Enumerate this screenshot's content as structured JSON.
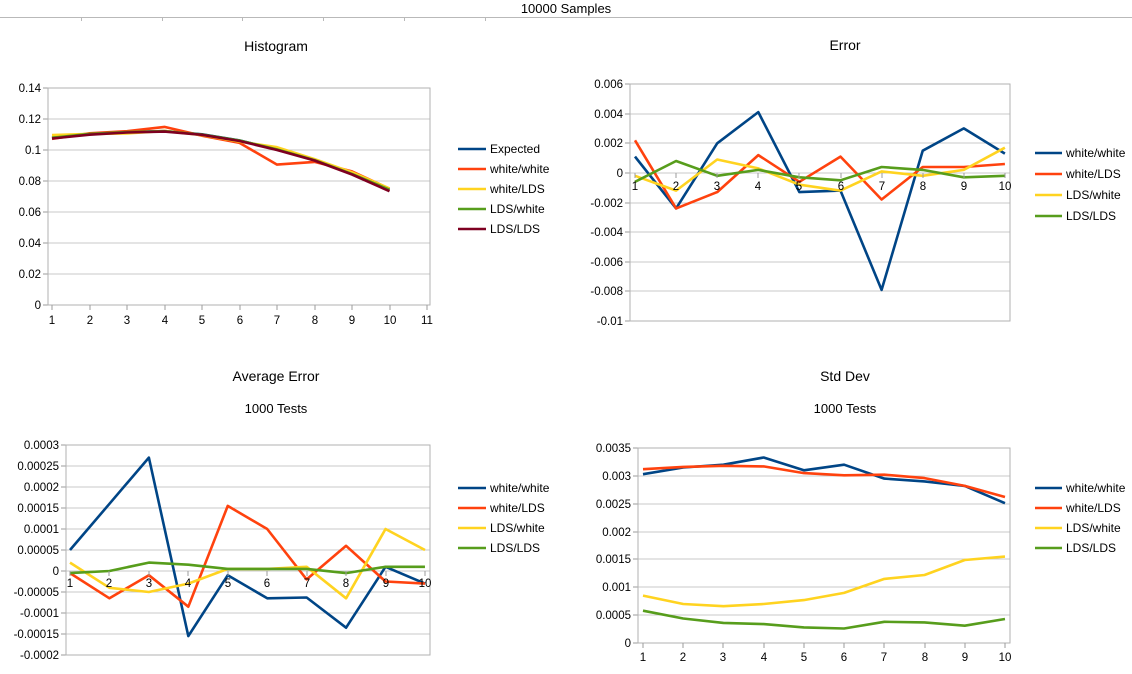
{
  "page_title": "10000 Samples",
  "palette": {
    "blue": "#004586",
    "red": "#FF420E",
    "yellow": "#FFD320",
    "green": "#579D1C",
    "maroon": "#7E0021"
  },
  "chart_data": [
    {
      "type": "line",
      "title": "Histogram",
      "subtitle": null,
      "x": [
        1,
        2,
        3,
        4,
        5,
        6,
        7,
        8,
        9,
        10
      ],
      "xticks": [
        1,
        2,
        3,
        4,
        5,
        6,
        7,
        8,
        9,
        10,
        11
      ],
      "ylim": [
        0,
        0.14
      ],
      "ystep": 0.02,
      "grid": true,
      "legend_position": "right",
      "legend": [
        "Expected",
        "white/white",
        "white/LDS",
        "LDS/white",
        "LDS/LDS"
      ],
      "series": [
        {
          "name": "Expected",
          "color": "blue",
          "values": [
            0.108,
            0.1102,
            0.1115,
            0.1122,
            0.1101,
            0.1062,
            0.1002,
            0.0936,
            0.0846,
            0.0741
          ]
        },
        {
          "name": "white/white",
          "color": "red",
          "values": [
            0.1072,
            0.1108,
            0.1121,
            0.1149,
            0.1092,
            0.1046,
            0.0906,
            0.0923,
            0.0862,
            0.075
          ]
        },
        {
          "name": "white/LDS",
          "color": "yellow",
          "values": [
            0.1096,
            0.1104,
            0.1107,
            0.1123,
            0.1096,
            0.1054,
            0.1018,
            0.0941,
            0.0856,
            0.0752
          ]
        },
        {
          "name": "LDS/white",
          "color": "green",
          "values": [
            0.1079,
            0.1104,
            0.1116,
            0.1121,
            0.11,
            0.1061,
            0.1004,
            0.0935,
            0.0845,
            0.0744
          ]
        },
        {
          "name": "LDS/LDS",
          "color": "maroon",
          "values": [
            0.1074,
            0.1099,
            0.1113,
            0.1119,
            0.1098,
            0.1058,
            0.1,
            0.0932,
            0.0842,
            0.0734
          ]
        }
      ]
    },
    {
      "type": "line",
      "title": "Error",
      "subtitle": null,
      "x": [
        1,
        2,
        3,
        4,
        5,
        6,
        7,
        8,
        9,
        10
      ],
      "xticks": [
        1,
        2,
        3,
        4,
        5,
        6,
        7,
        8,
        9,
        10
      ],
      "ylim": [
        -0.01,
        0.006
      ],
      "ystep": 0.002,
      "grid": true,
      "legend_position": "right",
      "legend": [
        "white/white",
        "white/LDS",
        "LDS/white",
        "LDS/LDS"
      ],
      "series": [
        {
          "name": "white/white",
          "color": "blue",
          "values": [
            0.0011,
            -0.0024,
            0.002,
            0.0041,
            -0.0013,
            -0.0012,
            -0.0079,
            0.0015,
            0.003,
            0.0013
          ]
        },
        {
          "name": "white/LDS",
          "color": "red",
          "values": [
            0.0022,
            -0.0024,
            -0.0013,
            0.0012,
            -0.0006,
            0.0011,
            -0.0018,
            0.0004,
            0.0004,
            0.0006
          ]
        },
        {
          "name": "LDS/white",
          "color": "yellow",
          "values": [
            -0.0002,
            -0.0012,
            0.0009,
            0.0003,
            -0.0008,
            -0.0012,
            0.0001,
            -0.0002,
            0.0002,
            0.0017
          ]
        },
        {
          "name": "LDS/LDS",
          "color": "green",
          "values": [
            -0.0006,
            0.0008,
            -0.0002,
            0.0002,
            -0.0003,
            -0.0005,
            0.0004,
            0.0002,
            -0.0003,
            -0.0002
          ]
        }
      ]
    },
    {
      "type": "line",
      "title": "Average Error",
      "subtitle": "1000 Tests",
      "x": [
        1,
        2,
        3,
        4,
        5,
        6,
        7,
        8,
        9,
        10
      ],
      "xticks": [
        1,
        2,
        3,
        4,
        5,
        6,
        7,
        8,
        9,
        10
      ],
      "ylim": [
        -0.0002,
        0.0003
      ],
      "ystep": 5e-05,
      "grid": true,
      "legend_position": "right",
      "legend": [
        "white/white",
        "white/LDS",
        "LDS/white",
        "LDS/LDS"
      ],
      "series": [
        {
          "name": "white/white",
          "color": "blue",
          "values": [
            5e-05,
            0.00016,
            0.00027,
            -0.000155,
            -1e-05,
            -6.5e-05,
            -6.3e-05,
            -0.000135,
            1e-05,
            -3e-05
          ]
        },
        {
          "name": "white/LDS",
          "color": "red",
          "values": [
            -5e-06,
            -6.5e-05,
            -1e-05,
            -8.5e-05,
            0.000155,
            0.0001,
            -2e-05,
            6e-05,
            -2.5e-05,
            -3e-05
          ]
        },
        {
          "name": "LDS/white",
          "color": "yellow",
          "values": [
            2e-05,
            -4e-05,
            -5e-05,
            -3e-05,
            5e-06,
            5e-06,
            1e-05,
            -6.5e-05,
            0.0001,
            5e-05
          ]
        },
        {
          "name": "LDS/LDS",
          "color": "green",
          "values": [
            -5e-06,
            0,
            2e-05,
            1.5e-05,
            5e-06,
            5e-06,
            5e-06,
            -5e-06,
            1e-05,
            1e-05
          ]
        }
      ]
    },
    {
      "type": "line",
      "title": "Std Dev",
      "subtitle": "1000 Tests",
      "x": [
        1,
        2,
        3,
        4,
        5,
        6,
        7,
        8,
        9,
        10
      ],
      "xticks": [
        1,
        2,
        3,
        4,
        5,
        6,
        7,
        8,
        9,
        10
      ],
      "ylim": [
        0,
        0.0035
      ],
      "ystep": 0.0005,
      "grid": true,
      "legend_position": "right",
      "legend": [
        "white/white",
        "white/LDS",
        "LDS/white",
        "LDS/LDS"
      ],
      "series": [
        {
          "name": "white/white",
          "color": "blue",
          "values": [
            0.00303,
            0.00315,
            0.0032,
            0.00333,
            0.0031,
            0.0032,
            0.00295,
            0.0029,
            0.00282,
            0.00251
          ]
        },
        {
          "name": "white/LDS",
          "color": "red",
          "values": [
            0.00312,
            0.00316,
            0.00318,
            0.00317,
            0.00305,
            0.00301,
            0.00302,
            0.00296,
            0.00282,
            0.00262
          ]
        },
        {
          "name": "LDS/white",
          "color": "yellow",
          "values": [
            0.00085,
            0.0007,
            0.00066,
            0.0007,
            0.00077,
            0.0009,
            0.00115,
            0.00122,
            0.00149,
            0.00155
          ]
        },
        {
          "name": "LDS/LDS",
          "color": "green",
          "values": [
            0.00058,
            0.00044,
            0.00036,
            0.00034,
            0.00028,
            0.00026,
            0.00038,
            0.00037,
            0.00031,
            0.00043
          ]
        }
      ]
    }
  ]
}
